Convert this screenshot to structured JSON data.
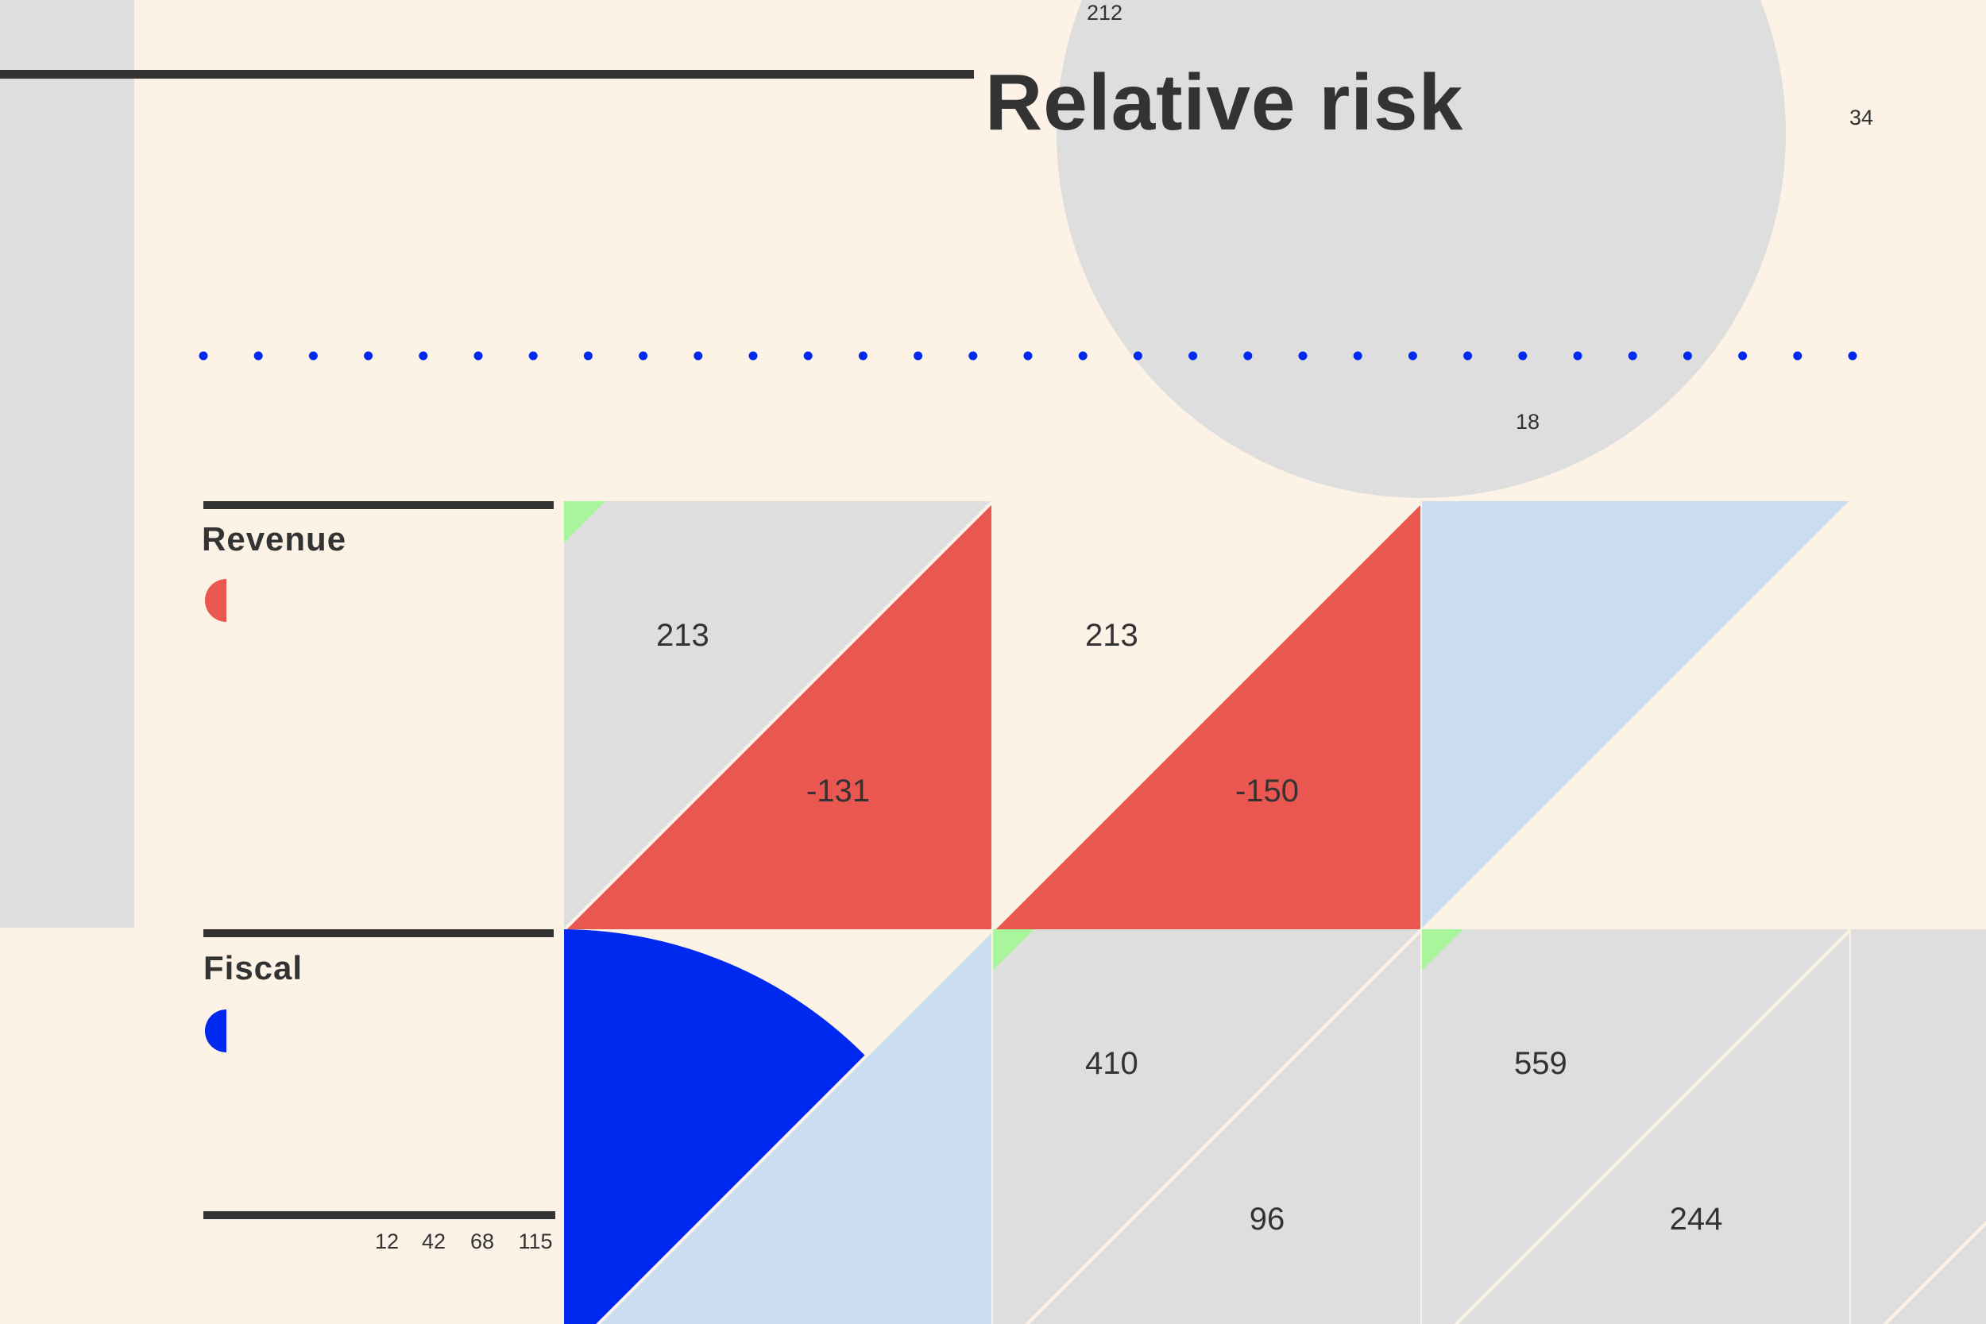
{
  "chart_data": {
    "type": "table",
    "title": "Relative risk",
    "annotations": [
      "212",
      "34",
      "18"
    ],
    "scale_ticks": [
      "12",
      "42",
      "68",
      "115"
    ],
    "colors": {
      "background": "#fdf2e6",
      "neutral": "#dedede",
      "negative": "#ea5750",
      "positive_light": "#c9dcf0",
      "primary_blue": "#0029f0",
      "marker_green": "#a8f59b",
      "dark": "#333333"
    },
    "rows": [
      {
        "label": "Revenue",
        "cells": [
          {
            "upper": "213",
            "lower": "-131",
            "upper_fill": "neutral",
            "lower_fill": "negative",
            "marker": true
          },
          {
            "upper": "213",
            "lower": "-150",
            "upper_fill": "background",
            "lower_fill": "negative",
            "marker": false
          },
          {
            "upper": "",
            "lower": "",
            "upper_fill": "positive_light",
            "lower_fill": "background",
            "marker": false
          }
        ]
      },
      {
        "label": "Fiscal",
        "cells": [
          {
            "upper": "",
            "lower": "",
            "upper_fill": "background",
            "lower_fill": "positive_light",
            "marker": false,
            "quarter_disc": true
          },
          {
            "upper": "410",
            "lower": "96",
            "upper_fill": "neutral",
            "lower_fill": "neutral",
            "marker": true
          },
          {
            "upper": "559",
            "lower": "244",
            "upper_fill": "neutral",
            "lower_fill": "neutral",
            "marker": true
          },
          {
            "upper": "",
            "lower": "",
            "upper_fill": "neutral",
            "lower_fill": "neutral",
            "marker": false
          }
        ]
      }
    ]
  }
}
